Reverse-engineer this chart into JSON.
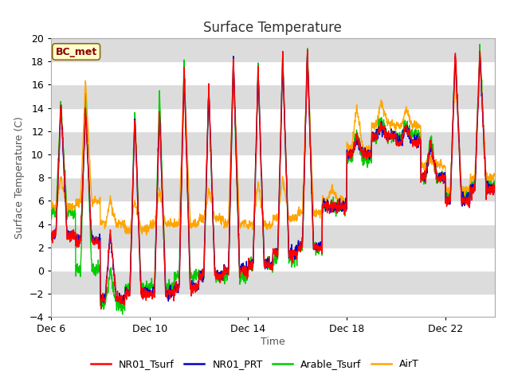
{
  "title": "Surface Temperature",
  "xlabel": "Time",
  "ylabel": "Surface Temperature (C)",
  "ylim": [
    -4,
    20
  ],
  "annotation": "BC_met",
  "annotation_color": "#8B0000",
  "annotation_bg": "#FFFFCC",
  "plot_bg": "#DCDCDC",
  "fig_bg": "#FFFFFF",
  "stripe_color": "#F0F0F0",
  "line_colors": {
    "NR01_Tsurf": "#FF0000",
    "NR01_PRT": "#0000CC",
    "Arable_Tsurf": "#00CC00",
    "AirT": "#FFA500"
  },
  "line_width": 1.0,
  "title_fontsize": 12,
  "label_fontsize": 9,
  "tick_fontsize": 9,
  "legend_fontsize": 9,
  "xtick_labels": [
    "Dec 6",
    "Dec 10",
    "Dec 14",
    "Dec 18",
    "Dec 22"
  ],
  "xtick_positions": [
    0,
    4,
    8,
    12,
    16
  ],
  "n_days": 18,
  "points_per_day": 96
}
